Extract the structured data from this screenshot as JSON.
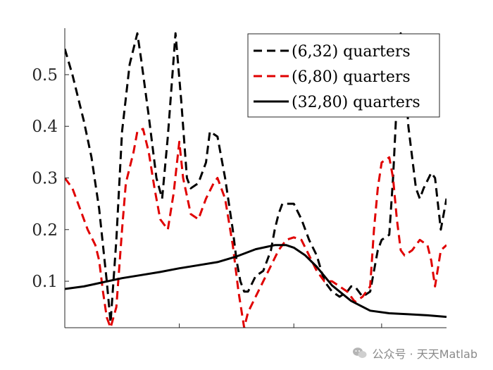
{
  "chart_data": {
    "type": "line",
    "title": "",
    "xlabel": "",
    "ylabel": "",
    "xlim": [
      0,
      1
    ],
    "ylim": [
      0.01,
      0.59
    ],
    "yticks": [
      0.1,
      0.2,
      0.3,
      0.4,
      0.5
    ],
    "ytick_labels": [
      "0.1",
      "0.2",
      "0.3",
      "0.4",
      "0.5"
    ],
    "xticks": [
      0.3,
      0.6,
      0.83
    ],
    "legend_position": "top-right",
    "series": [
      {
        "name": "(6,32) quarters",
        "color": "#000000",
        "dash": "dashed",
        "x": [
          0.0,
          0.02,
          0.05,
          0.07,
          0.09,
          0.11,
          0.12,
          0.135,
          0.15,
          0.17,
          0.19,
          0.2,
          0.22,
          0.24,
          0.255,
          0.27,
          0.29,
          0.305,
          0.32,
          0.33,
          0.35,
          0.37,
          0.38,
          0.4,
          0.42,
          0.44,
          0.45,
          0.46,
          0.47,
          0.48,
          0.5,
          0.52,
          0.54,
          0.55,
          0.56,
          0.57,
          0.6,
          0.62,
          0.64,
          0.66,
          0.68,
          0.7,
          0.72,
          0.74,
          0.75,
          0.76,
          0.78,
          0.8,
          0.81,
          0.82,
          0.83,
          0.85,
          0.86,
          0.87,
          0.88,
          0.89,
          0.9,
          0.92,
          0.93,
          0.94,
          0.96,
          0.97,
          0.985,
          1.0
        ],
        "values": [
          0.55,
          0.5,
          0.41,
          0.34,
          0.24,
          0.1,
          0.02,
          0.18,
          0.39,
          0.52,
          0.58,
          0.53,
          0.42,
          0.3,
          0.26,
          0.38,
          0.58,
          0.45,
          0.3,
          0.28,
          0.29,
          0.33,
          0.39,
          0.38,
          0.3,
          0.2,
          0.14,
          0.1,
          0.08,
          0.08,
          0.11,
          0.12,
          0.16,
          0.2,
          0.23,
          0.25,
          0.25,
          0.22,
          0.18,
          0.15,
          0.1,
          0.08,
          0.07,
          0.08,
          0.09,
          0.09,
          0.07,
          0.08,
          0.12,
          0.16,
          0.18,
          0.19,
          0.3,
          0.45,
          0.58,
          0.52,
          0.4,
          0.28,
          0.26,
          0.28,
          0.31,
          0.3,
          0.2,
          0.26
        ]
      },
      {
        "name": "(6,80) quarters",
        "color": "#e00000",
        "dash": "dashed",
        "x": [
          0.0,
          0.02,
          0.04,
          0.06,
          0.08,
          0.09,
          0.1,
          0.11,
          0.12,
          0.135,
          0.15,
          0.16,
          0.18,
          0.19,
          0.205,
          0.22,
          0.235,
          0.25,
          0.27,
          0.285,
          0.3,
          0.31,
          0.33,
          0.35,
          0.37,
          0.39,
          0.4,
          0.42,
          0.44,
          0.455,
          0.47,
          0.48,
          0.5,
          0.52,
          0.54,
          0.56,
          0.58,
          0.6,
          0.62,
          0.64,
          0.66,
          0.68,
          0.7,
          0.72,
          0.74,
          0.76,
          0.78,
          0.8,
          0.81,
          0.82,
          0.83,
          0.85,
          0.86,
          0.87,
          0.88,
          0.89,
          0.91,
          0.93,
          0.95,
          0.96,
          0.97,
          0.985,
          1.0
        ],
        "values": [
          0.3,
          0.28,
          0.24,
          0.2,
          0.17,
          0.14,
          0.08,
          0.03,
          0.01,
          0.05,
          0.2,
          0.29,
          0.35,
          0.39,
          0.395,
          0.35,
          0.28,
          0.22,
          0.2,
          0.27,
          0.37,
          0.3,
          0.23,
          0.22,
          0.26,
          0.29,
          0.3,
          0.26,
          0.17,
          0.08,
          0.01,
          0.04,
          0.07,
          0.1,
          0.13,
          0.16,
          0.18,
          0.185,
          0.18,
          0.15,
          0.12,
          0.1,
          0.1,
          0.09,
          0.08,
          0.06,
          0.07,
          0.09,
          0.2,
          0.28,
          0.33,
          0.34,
          0.3,
          0.22,
          0.16,
          0.15,
          0.16,
          0.18,
          0.17,
          0.14,
          0.09,
          0.16,
          0.17
        ]
      },
      {
        "name": "(32,80) quarters",
        "color": "#000000",
        "dash": "solid",
        "x": [
          0.0,
          0.05,
          0.1,
          0.15,
          0.2,
          0.25,
          0.3,
          0.35,
          0.4,
          0.45,
          0.5,
          0.55,
          0.58,
          0.6,
          0.63,
          0.66,
          0.7,
          0.75,
          0.8,
          0.85,
          0.9,
          0.95,
          1.0
        ],
        "values": [
          0.085,
          0.09,
          0.098,
          0.106,
          0.112,
          0.118,
          0.125,
          0.131,
          0.137,
          0.148,
          0.162,
          0.17,
          0.17,
          0.165,
          0.15,
          0.128,
          0.092,
          0.062,
          0.043,
          0.038,
          0.036,
          0.034,
          0.031
        ]
      }
    ]
  },
  "watermark": {
    "text": "公众号 · 天天Matlab"
  }
}
